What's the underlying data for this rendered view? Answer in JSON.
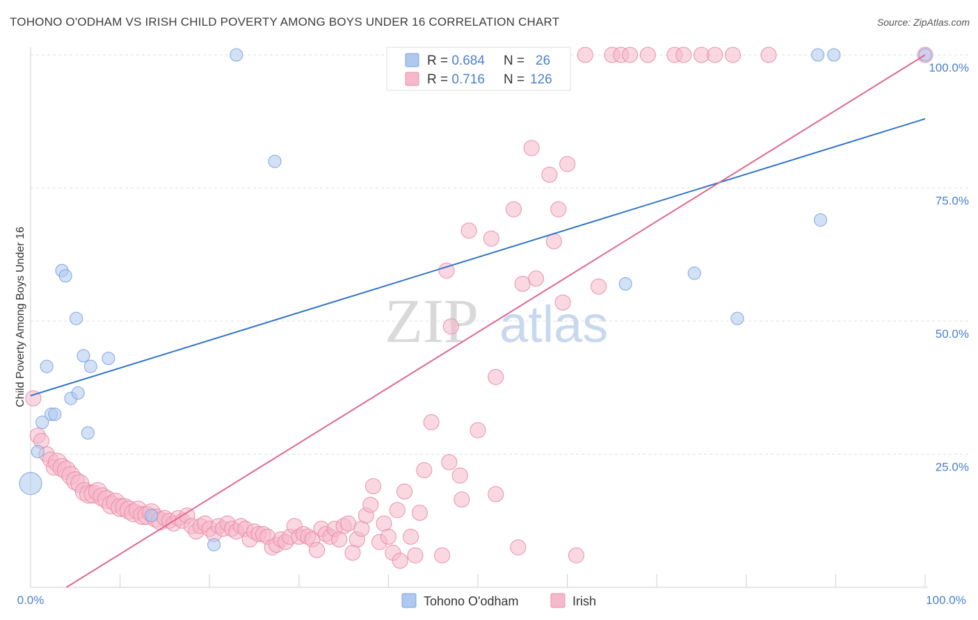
{
  "header": {
    "title": "TOHONO O'ODHAM VS IRISH CHILD POVERTY AMONG BOYS UNDER 16 CORRELATION CHART",
    "source": "Source: ZipAtlas.com"
  },
  "watermark": {
    "zip": "ZIP",
    "atlas": "atlas"
  },
  "legend": {
    "rows": [
      {
        "r_label": "R = ",
        "r_value": "0.684",
        "n_label": "N = ",
        "n_value": "26"
      },
      {
        "r_label": "R = ",
        "r_value": "0.716",
        "n_label": "N = ",
        "n_value": "126"
      }
    ]
  },
  "colors": {
    "blue_fill": "#aec8f0",
    "blue_stroke": "#7ea5dd",
    "blue_line": "#2f74c8",
    "pink_fill": "#f6b8cb",
    "pink_stroke": "#e98fac",
    "pink_line": "#e0668e",
    "tick_text": "#4a7fd0",
    "grid": "#dedede"
  },
  "chart_data": {
    "type": "scatter",
    "xlabel": "",
    "ylabel": "Child Poverty Among Boys Under 16",
    "xlim": [
      0,
      100
    ],
    "ylim": [
      0,
      100
    ],
    "x_tick_labels": [
      "0.0%",
      "100.0%"
    ],
    "y_tick_labels": [
      "25.0%",
      "50.0%",
      "75.0%",
      "100.0%"
    ],
    "y_tick_values": [
      25,
      50,
      75,
      100
    ],
    "grid": true,
    "legend_position": "top-center",
    "series": [
      {
        "name": "Tohono O'odham",
        "color": "#aec8f0",
        "points": [
          [
            0,
            19.5,
            16
          ],
          [
            0.8,
            25.5,
            9
          ],
          [
            1.3,
            31,
            9
          ],
          [
            1.8,
            41.5,
            9
          ],
          [
            2.3,
            32.5,
            9
          ],
          [
            2.7,
            32.5,
            9
          ],
          [
            3.5,
            59.5,
            9
          ],
          [
            3.9,
            58.5,
            9
          ],
          [
            4.5,
            35.5,
            9
          ],
          [
            5.1,
            50.5,
            9
          ],
          [
            5.3,
            36.5,
            9
          ],
          [
            5.9,
            43.5,
            9
          ],
          [
            6.4,
            29,
            9
          ],
          [
            6.7,
            41.5,
            9
          ],
          [
            8.7,
            43,
            9
          ],
          [
            13.5,
            13.5,
            9
          ],
          [
            20.5,
            8,
            9
          ],
          [
            23,
            100,
            9
          ],
          [
            27.3,
            80,
            9
          ],
          [
            66.5,
            57,
            9
          ],
          [
            74.2,
            59,
            9
          ],
          [
            79,
            50.5,
            9
          ],
          [
            88,
            100,
            9
          ],
          [
            88.3,
            69,
            9
          ],
          [
            89.8,
            100,
            9
          ],
          [
            100,
            100,
            9
          ]
        ],
        "trend": {
          "x": [
            0,
            100
          ],
          "y": [
            36,
            88
          ]
        }
      },
      {
        "name": "Irish",
        "color": "#f6b8cb",
        "points": [
          [
            0.3,
            35.5,
            11
          ],
          [
            0.8,
            28.5,
            11
          ],
          [
            1.2,
            27.5,
            11
          ],
          [
            1.8,
            25,
            11
          ],
          [
            2.2,
            24,
            11
          ],
          [
            2.6,
            22.5,
            11
          ],
          [
            3,
            23.5,
            13
          ],
          [
            3.5,
            22.5,
            13
          ],
          [
            4,
            22,
            13
          ],
          [
            4.5,
            21,
            13
          ],
          [
            5,
            20,
            13
          ],
          [
            5.5,
            19.5,
            13
          ],
          [
            6,
            18,
            13
          ],
          [
            6.5,
            17.5,
            13
          ],
          [
            7,
            17.5,
            13
          ],
          [
            7.5,
            18,
            13
          ],
          [
            8,
            17,
            13
          ],
          [
            8.5,
            16.5,
            13
          ],
          [
            9,
            15.5,
            13
          ],
          [
            9.5,
            16,
            13
          ],
          [
            10,
            15,
            13
          ],
          [
            10.5,
            15,
            13
          ],
          [
            11,
            14.5,
            13
          ],
          [
            11.5,
            14,
            13
          ],
          [
            12,
            14.5,
            13
          ],
          [
            12.5,
            13.5,
            13
          ],
          [
            13,
            13.5,
            13
          ],
          [
            13.5,
            14,
            13
          ],
          [
            14,
            13,
            13
          ],
          [
            14.5,
            12.5,
            13
          ],
          [
            15,
            13,
            11
          ],
          [
            15.5,
            12.5,
            11
          ],
          [
            16,
            12,
            11
          ],
          [
            16.5,
            13,
            11
          ],
          [
            17,
            12.5,
            11
          ],
          [
            17.5,
            13.5,
            11
          ],
          [
            18,
            11.5,
            11
          ],
          [
            18.5,
            10.5,
            11
          ],
          [
            19,
            11.5,
            11
          ],
          [
            19.5,
            12,
            11
          ],
          [
            20,
            11,
            11
          ],
          [
            20.5,
            10,
            11
          ],
          [
            21,
            11.5,
            11
          ],
          [
            21.5,
            11,
            11
          ],
          [
            22,
            12,
            11
          ],
          [
            22.5,
            11,
            11
          ],
          [
            23,
            10.5,
            11
          ],
          [
            23.5,
            11.5,
            11
          ],
          [
            24,
            11,
            11
          ],
          [
            24.5,
            9,
            11
          ],
          [
            25,
            10.5,
            11
          ],
          [
            25.5,
            10,
            11
          ],
          [
            26,
            10,
            11
          ],
          [
            26.5,
            9.5,
            11
          ],
          [
            27,
            7.5,
            11
          ],
          [
            27.5,
            8,
            11
          ],
          [
            28,
            9,
            11
          ],
          [
            28.5,
            8.5,
            11
          ],
          [
            29,
            9.5,
            11
          ],
          [
            29.5,
            11.5,
            11
          ],
          [
            30,
            9.5,
            11
          ],
          [
            30.5,
            10,
            11
          ],
          [
            31,
            9.5,
            11
          ],
          [
            31.5,
            9,
            11
          ],
          [
            32,
            7,
            11
          ],
          [
            32.5,
            11,
            11
          ],
          [
            33,
            10,
            11
          ],
          [
            33.5,
            9.5,
            11
          ],
          [
            34,
            11,
            11
          ],
          [
            34.5,
            9,
            11
          ],
          [
            35,
            11.5,
            11
          ],
          [
            35.5,
            12,
            11
          ],
          [
            36,
            6.5,
            11
          ],
          [
            36.5,
            9,
            11
          ],
          [
            37,
            11,
            11
          ],
          [
            37.5,
            13.5,
            11
          ],
          [
            38,
            15.5,
            11
          ],
          [
            38.3,
            19,
            11
          ],
          [
            39,
            8.5,
            11
          ],
          [
            39.5,
            12,
            11
          ],
          [
            40,
            9.5,
            11
          ],
          [
            40.5,
            6.5,
            11
          ],
          [
            41,
            14.5,
            11
          ],
          [
            41.3,
            5,
            11
          ],
          [
            41.8,
            18,
            11
          ],
          [
            42.5,
            9.5,
            11
          ],
          [
            43,
            6,
            11
          ],
          [
            43.5,
            14,
            11
          ],
          [
            44,
            22,
            11
          ],
          [
            44.8,
            31,
            11
          ],
          [
            46,
            6,
            11
          ],
          [
            46.5,
            59.5,
            11
          ],
          [
            46.8,
            23.5,
            11
          ],
          [
            47,
            49,
            11
          ],
          [
            48,
            21,
            11
          ],
          [
            48.2,
            16.5,
            11
          ],
          [
            49,
            67,
            11
          ],
          [
            50,
            29.5,
            11
          ],
          [
            52,
            17.5,
            11
          ],
          [
            51.5,
            65.5,
            11
          ],
          [
            52,
            39.5,
            11
          ],
          [
            54,
            71,
            11
          ],
          [
            54.5,
            7.5,
            11
          ],
          [
            55,
            57,
            11
          ],
          [
            56,
            82.5,
            11
          ],
          [
            56.5,
            58,
            11
          ],
          [
            57,
            100,
            11
          ],
          [
            58,
            77.5,
            11
          ],
          [
            58.5,
            65,
            11
          ],
          [
            59,
            71,
            11
          ],
          [
            59.5,
            53.5,
            11
          ],
          [
            60,
            79.5,
            11
          ],
          [
            61,
            6,
            11
          ],
          [
            62,
            100,
            11
          ],
          [
            63.5,
            56.5,
            11
          ],
          [
            65,
            100,
            11
          ],
          [
            66,
            100,
            11
          ],
          [
            67,
            100,
            11
          ],
          [
            69,
            100,
            11
          ],
          [
            72,
            100,
            11
          ],
          [
            73,
            100,
            11
          ],
          [
            75,
            100,
            11
          ],
          [
            76.5,
            100,
            11
          ],
          [
            78.5,
            100,
            11
          ],
          [
            82.5,
            100,
            11
          ],
          [
            100,
            100,
            11
          ]
        ],
        "trend": {
          "x": [
            4,
            100
          ],
          "y": [
            0,
            100
          ]
        }
      }
    ]
  }
}
